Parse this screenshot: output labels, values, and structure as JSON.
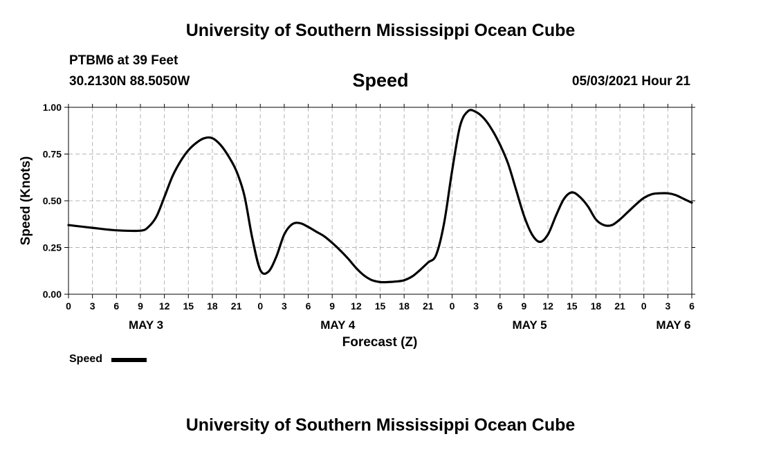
{
  "header": {
    "title": "University of Southern Mississippi Ocean Cube",
    "station": "PTBM6 at 39 Feet",
    "coords": "30.2130N  88.5050W",
    "parameter": "Speed",
    "datetime": "05/03/2021 Hour 21"
  },
  "footer": {
    "title": "University of Southern Mississippi Ocean Cube"
  },
  "colors": {
    "line": "#000000",
    "grid": "#b4b4b4",
    "background": "#ffffff"
  },
  "chart_data": {
    "type": "line",
    "ylabel": "Speed (Knots)",
    "xlabel": "Forecast (Z)",
    "x_range_hours": [
      0,
      78
    ],
    "ylim": [
      0,
      1
    ],
    "grid": true,
    "y_ticks": [
      "0.00",
      "0.25",
      "0.50",
      "0.75",
      "1.00"
    ],
    "y_tick_values": [
      0,
      0.25,
      0.5,
      0.75,
      1.0
    ],
    "x_tick_labels": [
      "0",
      "3",
      "6",
      "9",
      "12",
      "15",
      "18",
      "21",
      "0",
      "3",
      "6",
      "9",
      "12",
      "15",
      "18",
      "21",
      "0",
      "3",
      "6",
      "9",
      "12",
      "15",
      "18",
      "21",
      "0",
      "3",
      "6"
    ],
    "day_labels": [
      {
        "label": "MAY 3",
        "hour": 9.7
      },
      {
        "label": "MAY 4",
        "hour": 33.7
      },
      {
        "label": "MAY 5",
        "hour": 57.7
      },
      {
        "label": "MAY 6",
        "hour": 75.7
      }
    ],
    "legend": {
      "label": "Speed",
      "placement": "bottom-left"
    },
    "series": [
      {
        "name": "Speed",
        "x": [
          0,
          3,
          6,
          9,
          10,
          11,
          12,
          13,
          14,
          15,
          16,
          17,
          18,
          19,
          20,
          21,
          22,
          23,
          24,
          25,
          26,
          27,
          28,
          29,
          30,
          31,
          32,
          33,
          34,
          35,
          36,
          37,
          38,
          39,
          40,
          41,
          42,
          43,
          44,
          45,
          46,
          47,
          48,
          49,
          50,
          51,
          52,
          53,
          54,
          55,
          56,
          57,
          58,
          59,
          60,
          61,
          62,
          63,
          64,
          65,
          66,
          67,
          68,
          69,
          70,
          71,
          72,
          73,
          74,
          75,
          76,
          77,
          78
        ],
        "values": [
          0.37,
          0.355,
          0.342,
          0.34,
          0.36,
          0.415,
          0.52,
          0.63,
          0.71,
          0.77,
          0.81,
          0.835,
          0.835,
          0.8,
          0.74,
          0.66,
          0.53,
          0.3,
          0.13,
          0.12,
          0.2,
          0.32,
          0.375,
          0.38,
          0.36,
          0.335,
          0.31,
          0.275,
          0.235,
          0.19,
          0.14,
          0.1,
          0.075,
          0.065,
          0.065,
          0.068,
          0.075,
          0.095,
          0.13,
          0.17,
          0.21,
          0.38,
          0.66,
          0.9,
          0.98,
          0.975,
          0.94,
          0.88,
          0.8,
          0.7,
          0.56,
          0.42,
          0.32,
          0.28,
          0.32,
          0.42,
          0.51,
          0.545,
          0.52,
          0.47,
          0.4,
          0.37,
          0.37,
          0.4,
          0.44,
          0.48,
          0.515,
          0.535,
          0.54,
          0.54,
          0.53,
          0.51,
          0.49
        ]
      }
    ]
  }
}
